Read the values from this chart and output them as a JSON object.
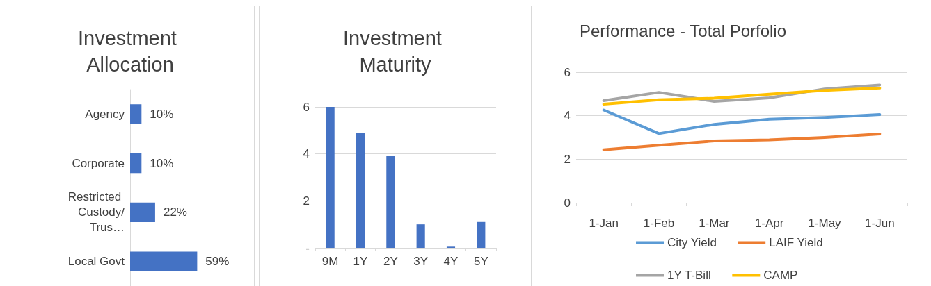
{
  "chart_data": [
    {
      "type": "bar",
      "title": "Investment Allocation",
      "orientation": "horizontal",
      "categories": [
        "Agency",
        "Corporate",
        "Restricted Custody/Trus…",
        "Local Govt"
      ],
      "values": [
        10,
        10,
        22,
        59
      ],
      "value_labels": [
        "10%",
        "10%",
        "22%",
        "59%"
      ],
      "color": "#4472c4",
      "grid": false
    },
    {
      "type": "bar",
      "title": "Investment Maturity",
      "categories": [
        "9M",
        "1Y",
        "2Y",
        "3Y",
        "4Y",
        "5Y"
      ],
      "values": [
        6,
        4.9,
        3.9,
        1,
        0.05,
        1.1
      ],
      "color": "#4472c4",
      "ylim": [
        0,
        6
      ],
      "yticks": [
        {
          "value": 0,
          "label": "-"
        },
        2,
        4,
        6
      ],
      "grid": "y"
    },
    {
      "type": "line",
      "title": "Performance - Total Porfolio",
      "categories": [
        "1-Jan",
        "1-Feb",
        "1-Mar",
        "1-Apr",
        "1-May",
        "1-Jun"
      ],
      "ylim": [
        0,
        6
      ],
      "yticks": [
        0,
        2,
        4,
        6
      ],
      "grid": "y",
      "legend": "bottom",
      "marker": "none",
      "series": [
        {
          "name": "City Yield",
          "color": "#5b9bd5",
          "values": [
            4.26,
            3.18,
            3.6,
            3.84,
            3.92,
            4.05
          ]
        },
        {
          "name": "LAIF Yield",
          "color": "#ed7d31",
          "values": [
            2.43,
            2.64,
            2.84,
            2.89,
            3.0,
            3.16
          ]
        },
        {
          "name": "1Y T-Bill",
          "color": "#a5a5a5",
          "values": [
            4.69,
            5.07,
            4.66,
            4.82,
            5.23,
            5.41
          ]
        },
        {
          "name": "CAMP",
          "color": "#ffc000",
          "values": [
            4.53,
            4.73,
            4.8,
            4.99,
            5.16,
            5.27
          ]
        }
      ]
    }
  ]
}
